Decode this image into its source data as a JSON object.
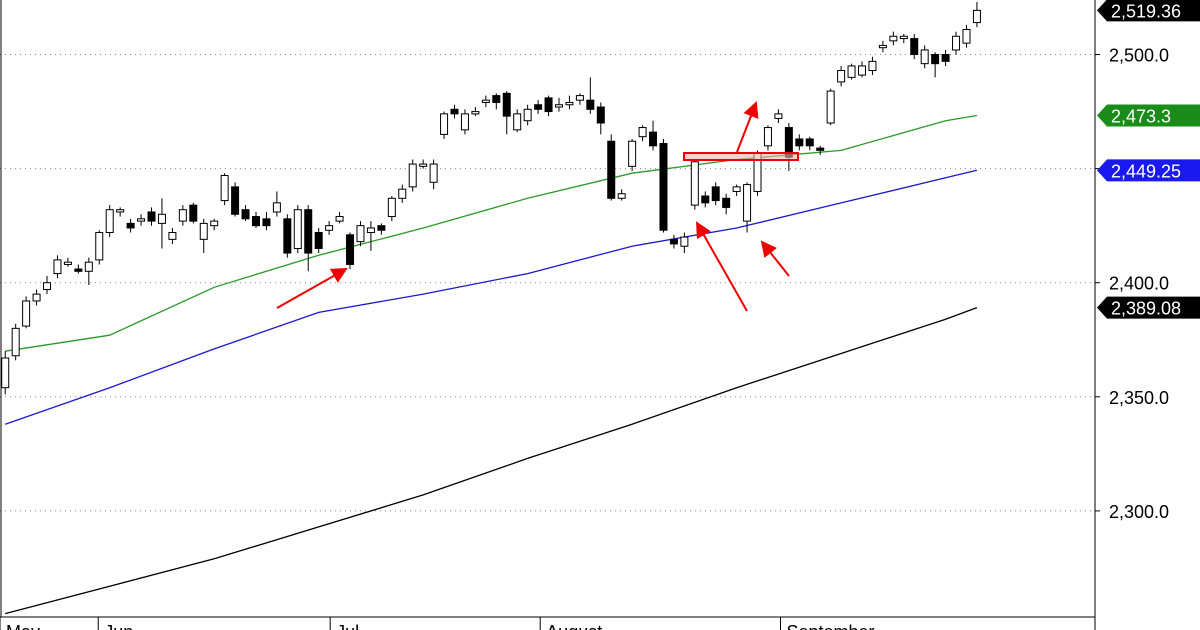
{
  "chart_data": {
    "type": "candlestick",
    "ylim": [
      2253.5,
      2523.9
    ],
    "xlim": [
      -0.5,
      104.3
    ],
    "yticks": [
      {
        "value": 2300,
        "label": "2,300.0"
      },
      {
        "value": 2350,
        "label": "2,350.0"
      },
      {
        "value": 2400,
        "label": "2,400.0"
      },
      {
        "value": 2450,
        "label": "2,450.0"
      },
      {
        "value": 2500,
        "label": "2,500.0"
      }
    ],
    "grid": true,
    "up_color": "#ffffff",
    "down_color": "#000000",
    "months": [
      {
        "label": "May",
        "at": -0.5
      },
      {
        "label": "Jun",
        "at": 8.9
      },
      {
        "label": "Jul",
        "at": 31.1
      },
      {
        "label": "August",
        "at": 51.2
      },
      {
        "label": "September",
        "at": 74.2
      }
    ],
    "candles": {
      "open": [
        2354,
        2368,
        2381,
        2392,
        2397,
        2404,
        2408,
        2406,
        2405,
        2410,
        2422,
        2431,
        2426,
        2427,
        2431,
        2426,
        2419,
        2427,
        2434,
        2419,
        2425,
        2436,
        2442,
        2432,
        2429,
        2428,
        2431,
        2428,
        2415,
        2432,
        2422,
        2423,
        2427,
        2421,
        2418,
        2422,
        2425,
        2429,
        2437,
        2442,
        2451,
        2444,
        2465,
        2476,
        2467,
        2474,
        2479,
        2482,
        2483,
        2467,
        2471,
        2478,
        2481,
        2477,
        2478,
        2480,
        2480,
        2477,
        2462,
        2437,
        2451,
        2464,
        2466,
        2461,
        2419,
        2416,
        2434,
        2438,
        2442,
        2437,
        2440,
        2427,
        2440,
        2460,
        2472,
        2468,
        2463,
        2463,
        2459,
        2470,
        2488,
        2490,
        2491,
        2493,
        2503,
        2506,
        2507,
        2507,
        2496,
        2500,
        2500,
        2502,
        2505,
        2514
      ],
      "high": [
        2370,
        2382,
        2394,
        2397,
        2403,
        2412,
        2411,
        2408,
        2411,
        2423,
        2434,
        2433,
        2428,
        2430,
        2433,
        2437,
        2424,
        2434,
        2435,
        2428,
        2428,
        2448,
        2444,
        2434,
        2431,
        2431,
        2440,
        2430,
        2434,
        2434,
        2424,
        2427,
        2431,
        2422,
        2427,
        2427,
        2426,
        2438,
        2443,
        2454,
        2454,
        2454,
        2475,
        2478,
        2476,
        2477,
        2482,
        2483,
        2484,
        2476,
        2478,
        2480,
        2482,
        2481,
        2482,
        2483,
        2490,
        2479,
        2465,
        2441,
        2463,
        2469,
        2471,
        2463,
        2421,
        2422,
        2454,
        2440,
        2444,
        2439,
        2443,
        2444,
        2458,
        2469,
        2476,
        2470,
        2465,
        2464,
        2460,
        2485,
        2495,
        2496,
        2497,
        2499,
        2506,
        2510,
        2509,
        2509,
        2504,
        2501,
        2502,
        2510,
        2513,
        2523
      ],
      "low": [
        2351,
        2366,
        2380,
        2390,
        2395,
        2402,
        2407,
        2404,
        2399,
        2408,
        2420,
        2429,
        2422,
        2425,
        2425,
        2415,
        2417,
        2425,
        2426,
        2413,
        2423,
        2434,
        2429,
        2427,
        2424,
        2423,
        2429,
        2411,
        2413,
        2405,
        2413,
        2421,
        2426,
        2406,
        2416,
        2414,
        2421,
        2427,
        2435,
        2440,
        2450,
        2441,
        2463,
        2472,
        2465,
        2473,
        2477,
        2476,
        2465,
        2466,
        2469,
        2474,
        2473,
        2475,
        2476,
        2478,
        2474,
        2465,
        2436,
        2436,
        2449,
        2462,
        2458,
        2422,
        2415,
        2413,
        2432,
        2433,
        2434,
        2430,
        2438,
        2422,
        2438,
        2458,
        2470,
        2449,
        2458,
        2458,
        2456,
        2469,
        2486,
        2489,
        2490,
        2491,
        2501,
        2504,
        2505,
        2498,
        2494,
        2490,
        2495,
        2500,
        2503,
        2512
      ],
      "close": [
        2367,
        2380,
        2392,
        2395,
        2400,
        2410,
        2409,
        2405,
        2409,
        2422,
        2432,
        2432,
        2424,
        2428,
        2427,
        2430,
        2422,
        2432,
        2427,
        2426,
        2427,
        2447,
        2430,
        2428,
        2425,
        2425,
        2435,
        2413,
        2432,
        2413,
        2415,
        2425,
        2429,
        2408,
        2425,
        2424,
        2423,
        2437,
        2441,
        2452,
        2452,
        2452,
        2474,
        2474,
        2474,
        2475,
        2480,
        2479,
        2473,
        2474,
        2476,
        2476,
        2475,
        2478,
        2479,
        2482,
        2476,
        2470,
        2437,
        2439,
        2462,
        2468,
        2460,
        2423,
        2417,
        2420,
        2453,
        2435,
        2436,
        2433,
        2442,
        2443,
        2457,
        2468,
        2474,
        2455,
        2460,
        2460,
        2458,
        2484,
        2493,
        2495,
        2495,
        2497,
        2504,
        2508,
        2508,
        2500,
        2502,
        2496,
        2497,
        2508,
        2511,
        2519.36
      ]
    },
    "lines": [
      {
        "color": "#000000",
        "x": [
          0,
          10,
          20,
          30,
          40,
          50,
          60,
          70,
          80,
          90,
          93
        ],
        "values": [
          2255,
          2267,
          2279,
          2293,
          2307,
          2323,
          2338,
          2354,
          2369,
          2384,
          2389.08
        ]
      },
      {
        "color": "#1a1acc",
        "x": [
          0,
          10,
          20,
          30,
          40,
          50,
          60,
          70,
          80,
          90,
          93
        ],
        "values": [
          2338,
          2354,
          2371,
          2387,
          2395,
          2404,
          2416,
          2424,
          2435,
          2446,
          2449.25
        ]
      },
      {
        "color": "#2a9a2a",
        "x": [
          0,
          10,
          20,
          30,
          40,
          50,
          60,
          70,
          80,
          90,
          93
        ],
        "values": [
          2370,
          2377,
          2398,
          2412,
          2424,
          2437,
          2448,
          2454,
          2458,
          2471,
          2473.3
        ]
      }
    ],
    "last_labels": [
      {
        "value": 2519.36,
        "label": "2,519.36",
        "color": "#000000"
      },
      {
        "value": 2473.3,
        "label": "2,473.3",
        "color": "#1a8c1a"
      },
      {
        "value": 2449.25,
        "label": "2,449.25",
        "color": "#1a1aee"
      },
      {
        "value": 2389.08,
        "label": "2,389.08",
        "color": "#000000"
      }
    ]
  }
}
